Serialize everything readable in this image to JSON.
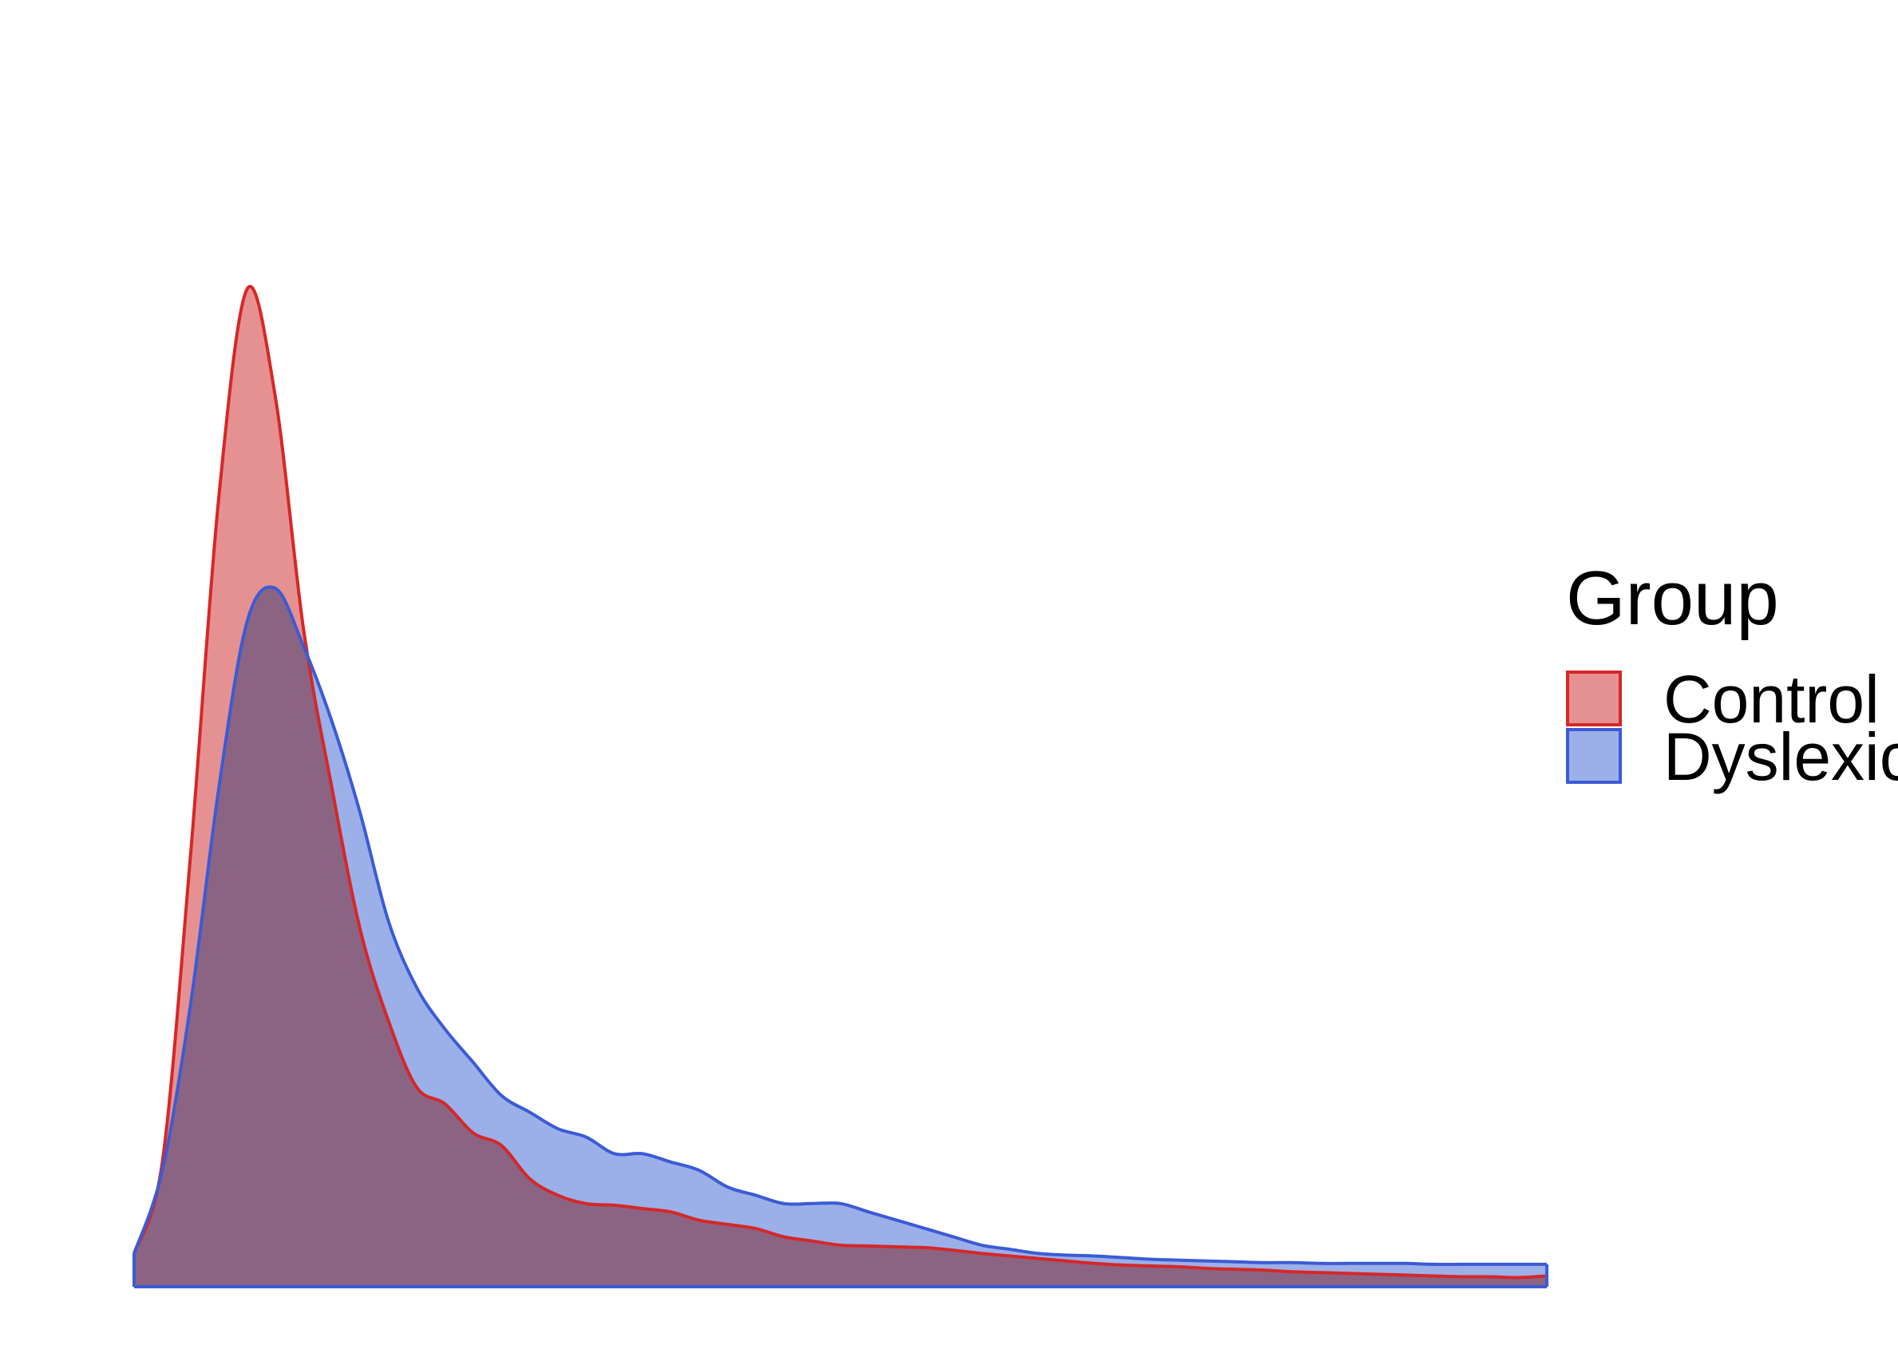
{
  "chart_data": {
    "type": "area",
    "title": "",
    "xlabel": "",
    "ylabel": "",
    "xlim": [
      0,
      100
    ],
    "ylim": [
      0,
      1.25
    ],
    "x": [
      0,
      2,
      4,
      6,
      8,
      10,
      12,
      14,
      16,
      18,
      20,
      22,
      24,
      26,
      28,
      30,
      32,
      34,
      36,
      38,
      40,
      42,
      44,
      46,
      48,
      50,
      52,
      54,
      56,
      58,
      60,
      62,
      64,
      66,
      68,
      70,
      72,
      74,
      76,
      78,
      80,
      82,
      84,
      86,
      88,
      90,
      92,
      94,
      96,
      98,
      100
    ],
    "series": [
      {
        "name": "Control",
        "color": "#d62728",
        "fill": "#e59191",
        "values": [
          0.04,
          0.15,
          0.52,
          0.95,
          1.2,
          1.07,
          0.79,
          0.6,
          0.43,
          0.32,
          0.24,
          0.22,
          0.185,
          0.17,
          0.13,
          0.11,
          0.1,
          0.098,
          0.094,
          0.09,
          0.08,
          0.075,
          0.07,
          0.06,
          0.055,
          0.05,
          0.049,
          0.048,
          0.047,
          0.044,
          0.04,
          0.037,
          0.034,
          0.031,
          0.028,
          0.026,
          0.025,
          0.024,
          0.022,
          0.021,
          0.02,
          0.018,
          0.017,
          0.016,
          0.015,
          0.014,
          0.013,
          0.012,
          0.012,
          0.011,
          0.013
        ]
      },
      {
        "name": "Dyslexic",
        "color": "#3b5bd6",
        "fill": "#9bb0e8",
        "values": [
          0.04,
          0.14,
          0.34,
          0.6,
          0.8,
          0.84,
          0.77,
          0.68,
          0.57,
          0.44,
          0.36,
          0.31,
          0.27,
          0.23,
          0.21,
          0.19,
          0.18,
          0.16,
          0.16,
          0.15,
          0.14,
          0.12,
          0.11,
          0.1,
          0.1,
          0.1,
          0.09,
          0.08,
          0.07,
          0.06,
          0.05,
          0.045,
          0.04,
          0.038,
          0.037,
          0.035,
          0.033,
          0.032,
          0.031,
          0.03,
          0.029,
          0.029,
          0.028,
          0.028,
          0.028,
          0.028,
          0.027,
          0.027,
          0.027,
          0.027,
          0.027
        ]
      }
    ],
    "legend": {
      "title": "Group",
      "position": "right",
      "entries": [
        "Control",
        "Dyslexic"
      ]
    },
    "grid": false,
    "axes_visible": false
  }
}
